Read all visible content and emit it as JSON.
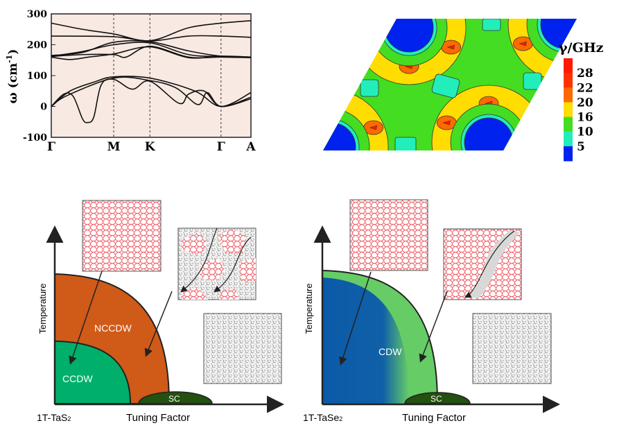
{
  "chart_data": [
    {
      "type": "line",
      "ylabel": "ω (cm",
      "ylabel_sup": "-1",
      "ylabel_close": ")",
      "ylim": [
        -100,
        300
      ],
      "yticks": [
        "300",
        "200",
        "100",
        "0",
        "-100"
      ],
      "ytick_values": [
        300,
        200,
        100,
        0,
        -100
      ],
      "xticks": [
        {
          "label": "Γ",
          "k": 0
        },
        {
          "label": "M",
          "k": 1
        },
        {
          "label": "K",
          "k": 1.58
        },
        {
          "label": "Γ",
          "k": 2.72
        },
        {
          "label": "A",
          "k": 3.2
        }
      ],
      "background": "#f8e9e2",
      "series": [
        {
          "points": [
            [
              0,
              270
            ],
            [
              0.5,
              250
            ],
            [
              1,
              235
            ],
            [
              1.58,
              213
            ],
            [
              2.2,
              255
            ],
            [
              2.72,
              270
            ],
            [
              3.2,
              278
            ]
          ]
        },
        {
          "points": [
            [
              0,
              228
            ],
            [
              1,
              226
            ],
            [
              1.58,
              212
            ],
            [
              2.2,
              228
            ],
            [
              2.72,
              228
            ],
            [
              3.2,
              224
            ]
          ]
        },
        {
          "points": [
            [
              0,
              165
            ],
            [
              0.5,
              175
            ],
            [
              1,
              208
            ],
            [
              1.58,
              210
            ],
            [
              2.2,
              180
            ],
            [
              2.72,
              163
            ],
            [
              3.2,
              160
            ]
          ]
        },
        {
          "points": [
            [
              0,
              163
            ],
            [
              0.5,
              178
            ],
            [
              1,
              200
            ],
            [
              1.58,
              206
            ],
            [
              2.2,
              168
            ],
            [
              2.72,
              162
            ],
            [
              3.2,
              160
            ]
          ]
        },
        {
          "points": [
            [
              0,
              162
            ],
            [
              0.5,
              168
            ],
            [
              1,
              168
            ],
            [
              1.2,
              160
            ],
            [
              1.58,
              195
            ],
            [
              2.2,
              160
            ],
            [
              2.72,
              160
            ],
            [
              3.2,
              158
            ]
          ]
        },
        {
          "points": [
            [
              0,
              160
            ],
            [
              0.3,
              152
            ],
            [
              0.6,
              160
            ],
            [
              1,
              170
            ],
            [
              1.58,
              193
            ],
            [
              2.2,
              158
            ],
            [
              2.72,
              163
            ],
            [
              3.2,
              160
            ]
          ]
        },
        {
          "points": [
            [
              0,
              0
            ],
            [
              0.3,
              50
            ],
            [
              0.7,
              80
            ],
            [
              1,
              96
            ],
            [
              1.58,
              92
            ],
            [
              2.3,
              50
            ],
            [
              2.72,
              0
            ],
            [
              3.2,
              45
            ]
          ]
        },
        {
          "points": [
            [
              0,
              0
            ],
            [
              0.2,
              40
            ],
            [
              0.35,
              33
            ],
            [
              0.5,
              -40
            ],
            [
              0.58,
              -52
            ],
            [
              0.68,
              -35
            ],
            [
              0.8,
              70
            ],
            [
              1,
              88
            ],
            [
              1.3,
              56
            ],
            [
              1.58,
              82
            ],
            [
              2.05,
              10
            ],
            [
              2.2,
              40
            ],
            [
              2.45,
              50
            ],
            [
              2.72,
              0
            ],
            [
              3.2,
              30
            ]
          ]
        },
        {
          "points": [
            [
              0,
              0
            ],
            [
              0.25,
              35
            ],
            [
              1,
              92
            ],
            [
              1.58,
              84
            ],
            [
              2.0,
              60
            ],
            [
              2.35,
              6
            ],
            [
              2.5,
              45
            ],
            [
              2.72,
              0
            ],
            [
              3.2,
              25
            ]
          ]
        }
      ]
    },
    {
      "type": "heatmap",
      "colorbar_title": "γ/GHz",
      "colorbar_labels": [
        "28",
        "22",
        "20",
        "16",
        "10",
        "5"
      ],
      "colorbar_colors": [
        "#ff1a00",
        "#ff3300",
        "#ff6a00",
        "#ffdd00",
        "#44dd22",
        "#22eebb",
        "#0022ee"
      ]
    }
  ],
  "phase_left": {
    "material": "1T-TaS",
    "material_sub": "2",
    "xlabel": "Tuning Factor",
    "ylabel": "Temperature",
    "regions": [
      "NCCDW",
      "CCDW",
      "SC"
    ],
    "colors": {
      "nccdw": "#d05a18",
      "ccdw": "#00b06a",
      "sc": "#245010"
    }
  },
  "phase_right": {
    "material": "1T-TaSe",
    "material_sub": "2",
    "xlabel": "Tuning Factor",
    "ylabel": "Temperature",
    "regions": [
      "CDW",
      "SC"
    ],
    "colors": {
      "outer": "#66cc66",
      "inner": "#0b5aa8",
      "sc": "#245010"
    }
  }
}
